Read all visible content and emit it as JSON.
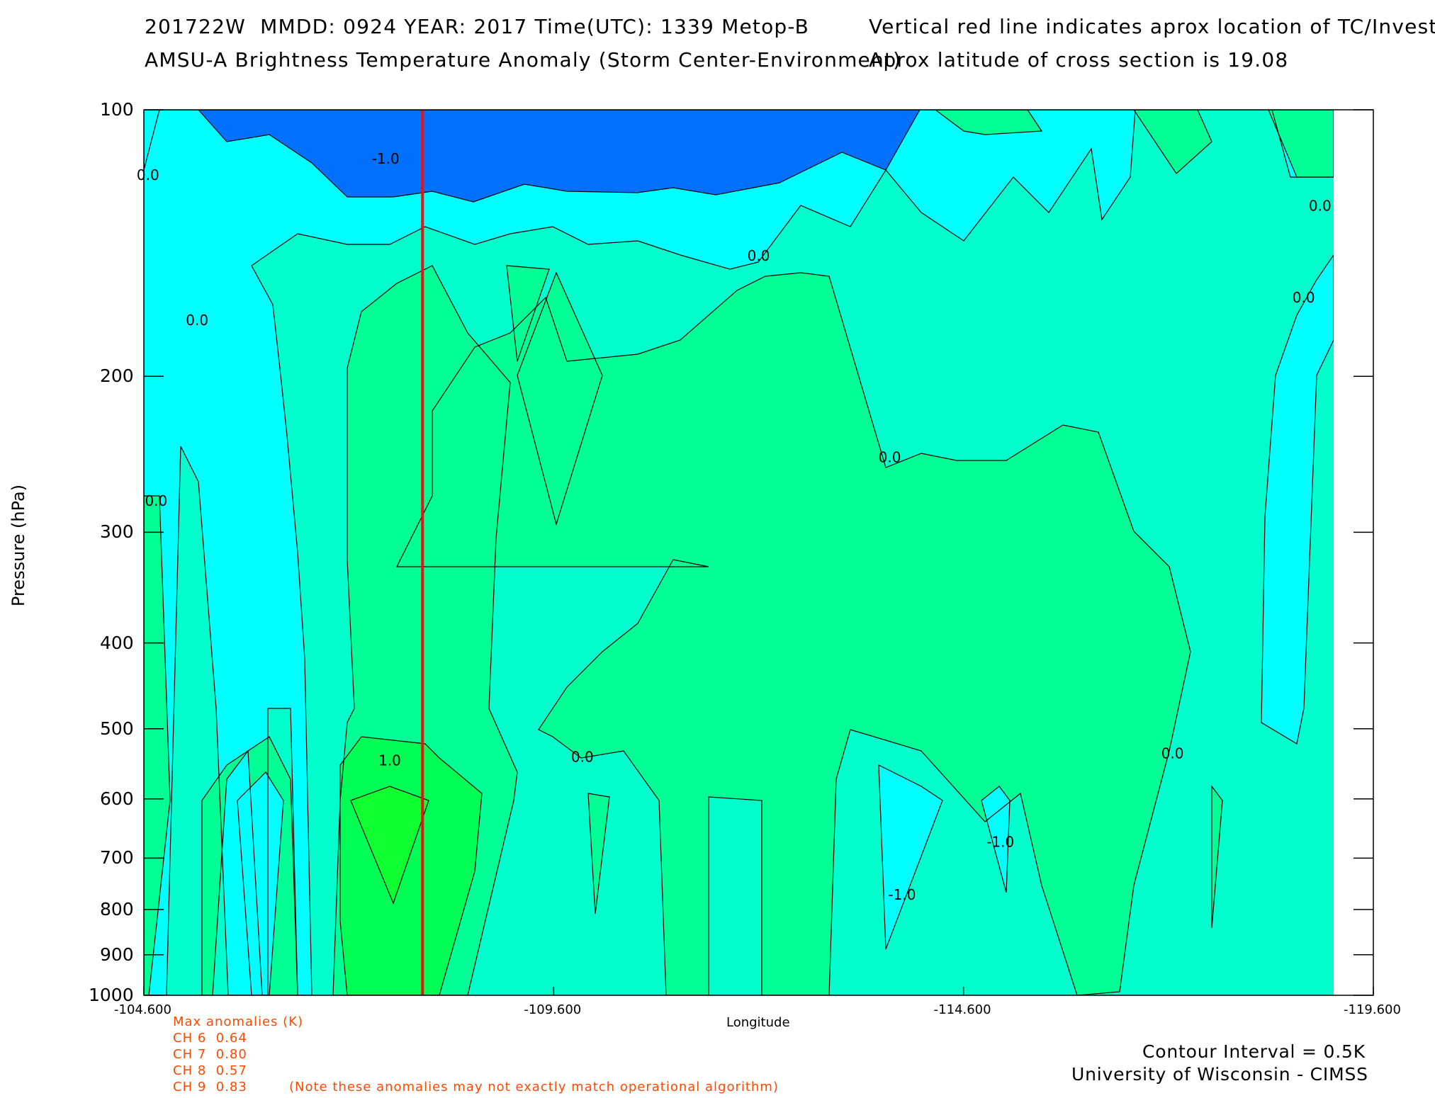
{
  "header": {
    "line1_left": "201722W  MMDD: 0924 YEAR: 2017 Time(UTC): 1339 Metop-B",
    "line2_left": "AMSU-A Brightness Temperature Anomaly (Storm Center-Environment)",
    "line1_right": "Vertical red line indicates aprox location of TC/Invest",
    "line2_right": "Aprox latitude of cross section is 19.08"
  },
  "colors": {
    "neg15": "#0070ff",
    "neg05": "#00ffff",
    "zero": "#00ffcc",
    "pos05": "#00ff94",
    "pos10": "#00ff55",
    "pos15": "#10ff30",
    "storm_line": "#ee1111",
    "anomaly_text": "#ff4a00"
  },
  "chart_data": {
    "type": "contour",
    "xlabel": "Longitude",
    "ylabel": "Pressure (hPa)",
    "xlim": [
      -104.6,
      -119.6
    ],
    "ylim": [
      1000,
      100
    ],
    "y_scale": "log",
    "x_ticks": [
      "-104.600",
      "-109.600",
      "-114.600",
      "-119.600"
    ],
    "y_ticks": [
      "100",
      "200",
      "300",
      "400",
      "500",
      "600",
      "700",
      "800",
      "900",
      "1000"
    ],
    "storm_longitude": -108.0,
    "contour_interval_K": 0.5,
    "contour_labels": [
      {
        "text": "0.0",
        "lon": -104.65,
        "p": 120
      },
      {
        "text": "-1.0",
        "lon": -107.55,
        "p": 115
      },
      {
        "text": "0.0",
        "lon": -112.1,
        "p": 148
      },
      {
        "text": "0.0",
        "lon": -105.25,
        "p": 175
      },
      {
        "text": "0.0",
        "lon": -104.75,
        "p": 280
      },
      {
        "text": "1.0",
        "lon": -107.6,
        "p": 550
      },
      {
        "text": "0.0",
        "lon": -109.95,
        "p": 545
      },
      {
        "text": "0.0",
        "lon": -113.7,
        "p": 250
      },
      {
        "text": "0.0",
        "lon": -118.75,
        "p": 165
      },
      {
        "text": "0.0",
        "lon": -118.95,
        "p": 130
      },
      {
        "text": "0.0",
        "lon": -117.15,
        "p": 540
      },
      {
        "text": "-1.0",
        "lon": -115.05,
        "p": 680
      },
      {
        "text": "-1.0",
        "lon": -113.85,
        "p": 780
      }
    ],
    "max_anomalies_title": "Max anomalies (K)",
    "max_anomalies": [
      {
        "channel": "CH 6",
        "value": "0.64"
      },
      {
        "channel": "CH 7",
        "value": "0.80"
      },
      {
        "channel": "CH 8",
        "value": "0.57"
      },
      {
        "channel": "CH 9",
        "value": "0.83"
      }
    ],
    "anomaly_note": "(Note these anomalies may not exactly match operational algorithm)"
  },
  "footer": {
    "contour_interval": "Contour Interval = 0.5K",
    "credit": "University of Wisconsin - CIMSS"
  }
}
